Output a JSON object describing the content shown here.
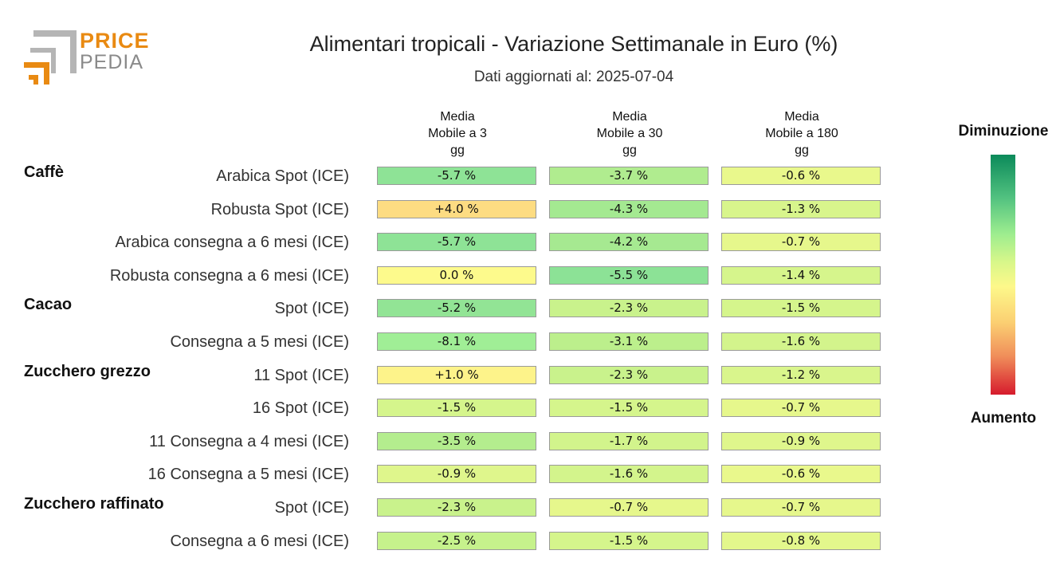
{
  "logo": {
    "price": "PRICE",
    "pedia": "PEDIA"
  },
  "chart_data": {
    "type": "heatmap",
    "title": "Alimentari tropicali - Variazione Settimanale in Euro (%)",
    "subtitle": "Dati aggiornati al: 2025-07-04",
    "columns": [
      "Media\nMobile a 3\ngg",
      "Media\nMobile a 30\ngg",
      "Media\nMobile a 180\ngg"
    ],
    "groups": [
      {
        "name": "Caffè",
        "rows": [
          {
            "label": "Arabica Spot (ICE)",
            "values": [
              -5.7,
              -3.7,
              -0.6
            ],
            "labels": [
              "-5.7 %",
              "-3.7 %",
              "-0.6 %"
            ]
          },
          {
            "label": "Robusta Spot (ICE)",
            "values": [
              4.0,
              -4.3,
              -1.3
            ],
            "labels": [
              "+4.0 %",
              "-4.3 %",
              "-1.3 %"
            ]
          },
          {
            "label": "Arabica consegna a 6 mesi (ICE)",
            "values": [
              -5.7,
              -4.2,
              -0.7
            ],
            "labels": [
              "-5.7 %",
              "-4.2 %",
              "-0.7 %"
            ]
          },
          {
            "label": "Robusta consegna a 6 mesi (ICE)",
            "values": [
              0.0,
              -5.5,
              -1.4
            ],
            "labels": [
              "0.0 %",
              "-5.5 %",
              "-1.4 %"
            ]
          }
        ]
      },
      {
        "name": "Cacao",
        "rows": [
          {
            "label": "Spot (ICE)",
            "values": [
              -5.2,
              -2.3,
              -1.5
            ],
            "labels": [
              "-5.2 %",
              "-2.3 %",
              "-1.5 %"
            ]
          },
          {
            "label": "Consegna a 5 mesi (ICE)",
            "values": [
              -8.1,
              -3.1,
              -1.6
            ],
            "labels": [
              "-8.1 %",
              "-3.1 %",
              "-1.6 %"
            ]
          }
        ]
      },
      {
        "name": "Zucchero grezzo",
        "rows": [
          {
            "label": "11 Spot (ICE)",
            "values": [
              1.0,
              -2.3,
              -1.2
            ],
            "labels": [
              "+1.0 %",
              "-2.3 %",
              "-1.2 %"
            ]
          },
          {
            "label": "16 Spot (ICE)",
            "values": [
              -1.5,
              -1.5,
              -0.7
            ],
            "labels": [
              "-1.5 %",
              "-1.5 %",
              "-0.7 %"
            ]
          },
          {
            "label": "11 Consegna a 4 mesi (ICE)",
            "values": [
              -3.5,
              -1.7,
              -0.9
            ],
            "labels": [
              "-3.5 %",
              "-1.7 %",
              "-0.9 %"
            ]
          },
          {
            "label": "16 Consegna a 5 mesi (ICE)",
            "values": [
              -0.9,
              -1.6,
              -0.6
            ],
            "labels": [
              "-0.9 %",
              "-1.6 %",
              "-0.6 %"
            ]
          }
        ]
      },
      {
        "name": "Zucchero raffinato",
        "rows": [
          {
            "label": "Spot (ICE)",
            "values": [
              -2.3,
              -0.7,
              -0.7
            ],
            "labels": [
              "-2.3 %",
              "-0.7 %",
              "-0.7 %"
            ]
          },
          {
            "label": "Consegna a 6 mesi (ICE)",
            "values": [
              -2.5,
              -1.5,
              -0.8
            ],
            "labels": [
              "-2.5 %",
              "-1.5 %",
              "-0.8 %"
            ]
          }
        ]
      }
    ],
    "legend": {
      "top": "Diminuzione",
      "bottom": "Aumento"
    }
  }
}
